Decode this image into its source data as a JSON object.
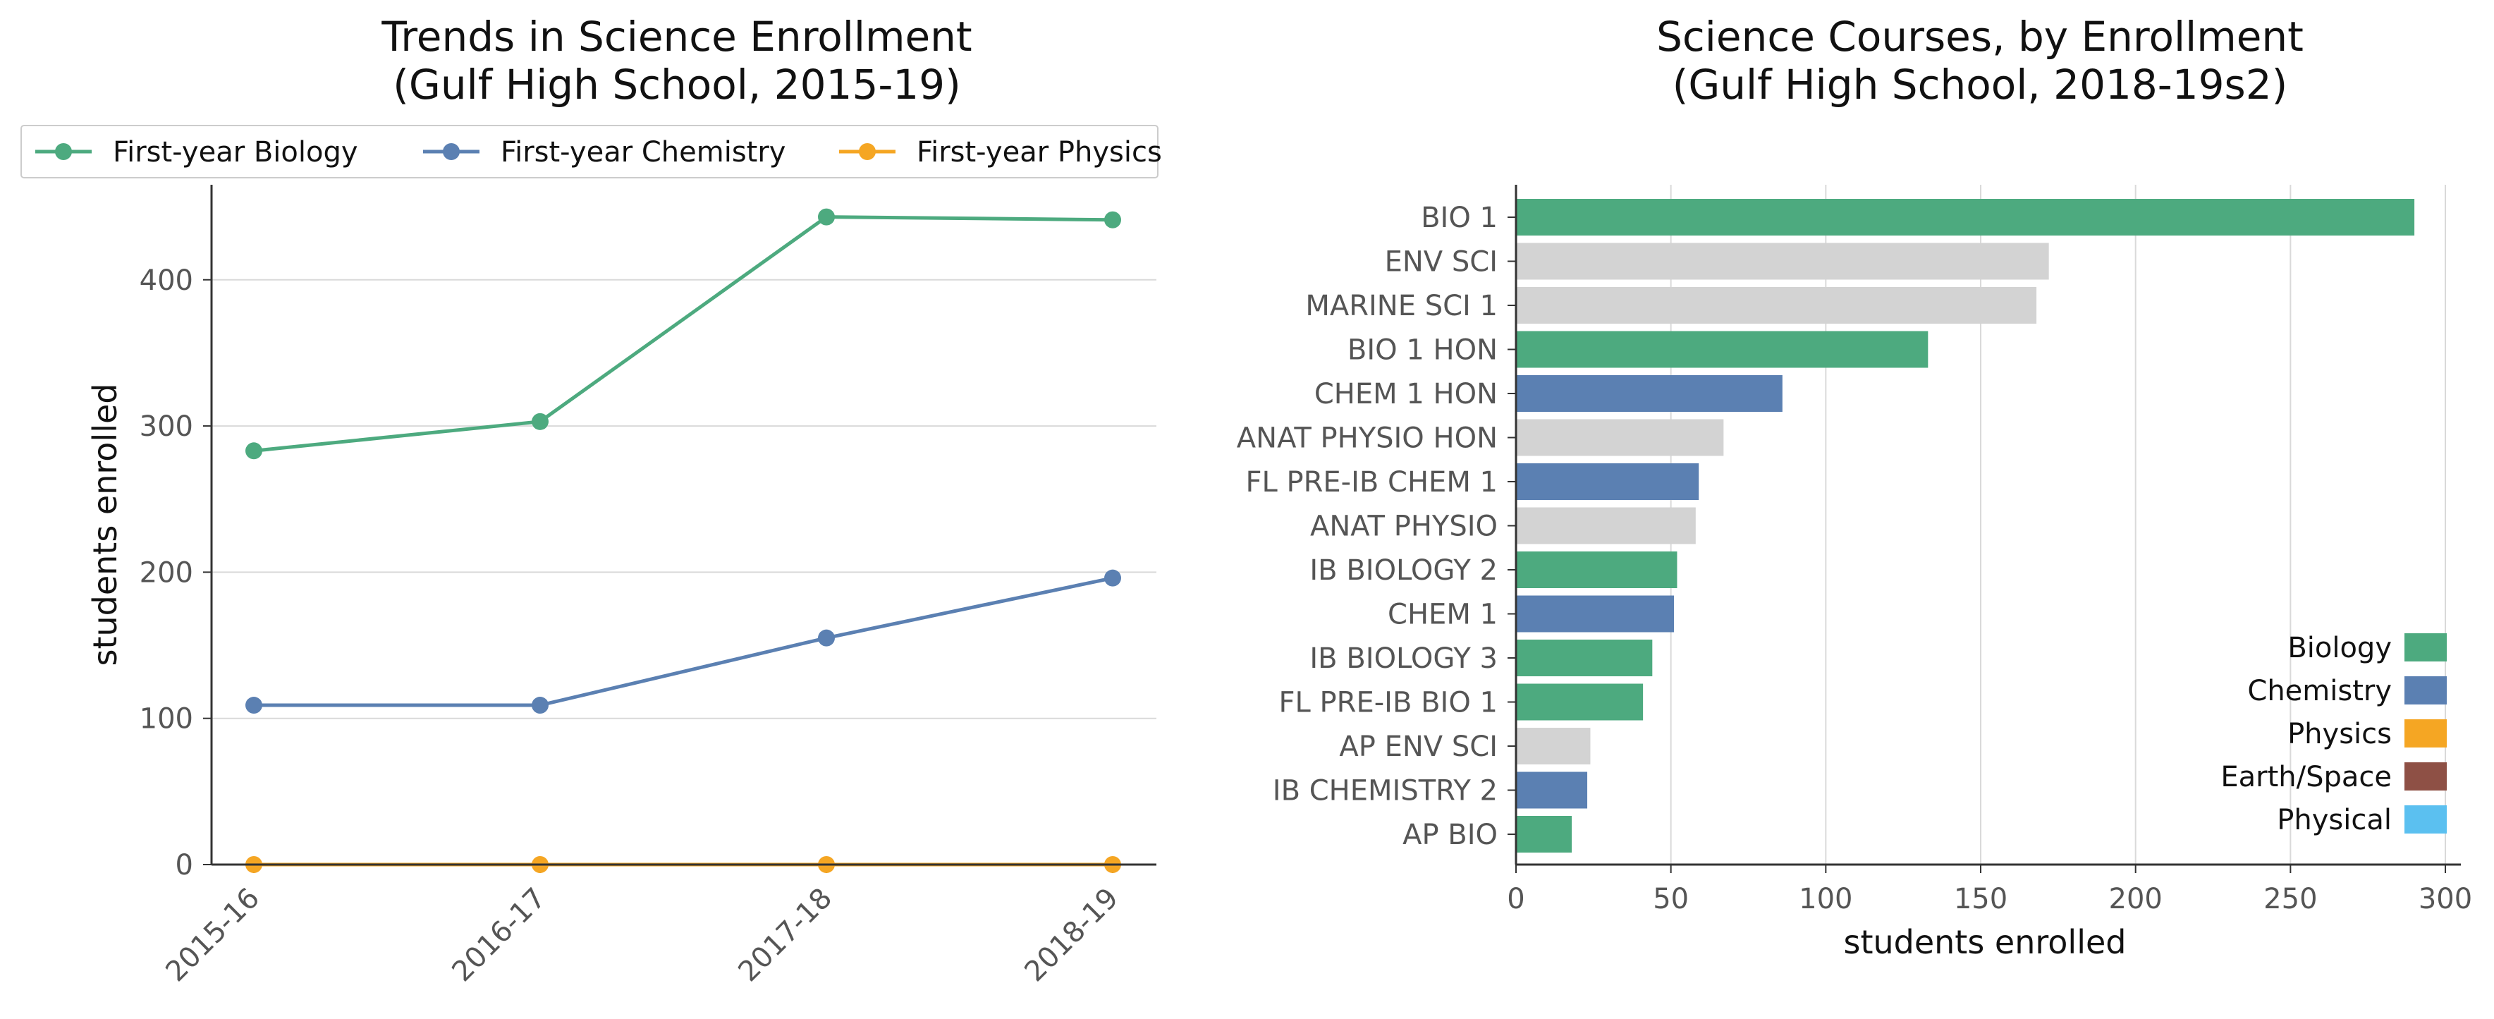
{
  "chart_data": [
    {
      "type": "line",
      "title_line1": "Trends in Science Enrollment",
      "title_line2": "(Gulf High School, 2015-19)",
      "xlabel": "",
      "ylabel": "students enrolled",
      "categories": [
        "2015-16",
        "2016-17",
        "2017-18",
        "2018-19"
      ],
      "yticks": [
        "0",
        "100",
        "200",
        "300",
        "400"
      ],
      "ylim": [
        0,
        465
      ],
      "grid": "horizontal",
      "legend_position": "top",
      "series": [
        {
          "name": "First-year Biology",
          "color": "#4daa7f",
          "values": [
            283,
            303,
            443,
            441
          ]
        },
        {
          "name": "First-year Chemistry",
          "color": "#5b80b2",
          "values": [
            109,
            109,
            155,
            196
          ]
        },
        {
          "name": "First-year Physics",
          "color": "#f5a623",
          "values": [
            0,
            0,
            0,
            0
          ]
        }
      ]
    },
    {
      "type": "bar",
      "orientation": "horizontal",
      "title_line1": "Science Courses, by Enrollment",
      "title_line2": "(Gulf High School, 2018-19s2)",
      "xlabel": "students enrolled",
      "ylabel": "",
      "xticks": [
        "0",
        "50",
        "100",
        "150",
        "200",
        "250",
        "300"
      ],
      "xlim": [
        0,
        305
      ],
      "grid": "vertical",
      "legend_position": "lower-right",
      "colors": {
        "Biology": "#4daa7f",
        "Chemistry": "#5b80b2",
        "Physics": "#f5a623",
        "Earth/Space": "#8e5045",
        "Physical": "#5bc0f0",
        "Other": "#d3d3d3"
      },
      "legend": [
        "Biology",
        "Chemistry",
        "Physics",
        "Earth/Space",
        "Physical"
      ],
      "bars": [
        {
          "label": "BIO 1",
          "value": 290,
          "group": "Biology"
        },
        {
          "label": "ENV SCI",
          "value": 172,
          "group": "Other"
        },
        {
          "label": "MARINE SCI 1",
          "value": 168,
          "group": "Other"
        },
        {
          "label": "BIO 1 HON",
          "value": 133,
          "group": "Biology"
        },
        {
          "label": "CHEM 1 HON",
          "value": 86,
          "group": "Chemistry"
        },
        {
          "label": "ANAT PHYSIO HON",
          "value": 67,
          "group": "Other"
        },
        {
          "label": "FL PRE-IB CHEM 1",
          "value": 59,
          "group": "Chemistry"
        },
        {
          "label": "ANAT PHYSIO",
          "value": 58,
          "group": "Other"
        },
        {
          "label": "IB BIOLOGY 2",
          "value": 52,
          "group": "Biology"
        },
        {
          "label": "CHEM 1",
          "value": 51,
          "group": "Chemistry"
        },
        {
          "label": "IB BIOLOGY 3",
          "value": 44,
          "group": "Biology"
        },
        {
          "label": "FL PRE-IB BIO 1",
          "value": 41,
          "group": "Biology"
        },
        {
          "label": "AP ENV SCI",
          "value": 24,
          "group": "Other"
        },
        {
          "label": "IB CHEMISTRY 2",
          "value": 23,
          "group": "Chemistry"
        },
        {
          "label": "AP BIO",
          "value": 18,
          "group": "Biology"
        }
      ]
    }
  ]
}
